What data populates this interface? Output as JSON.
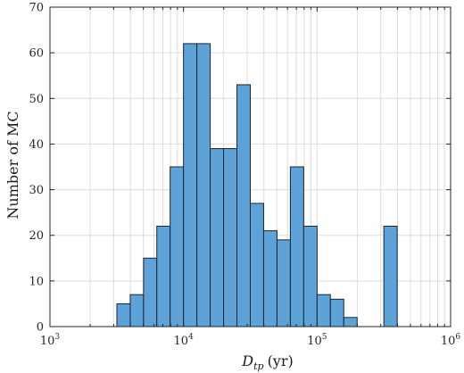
{
  "chart_data": {
    "type": "bar",
    "subtype": "histogram",
    "x_scale": "log",
    "xlim": [
      1000,
      1000000
    ],
    "ylim": [
      0,
      70
    ],
    "grid": true,
    "xlabel": {
      "main": "D",
      "sub": "tp",
      "unit": "(yr)"
    },
    "ylabel": "Number of MC",
    "x_ticks": [
      {
        "base": "10",
        "exp": "3",
        "value": 1000
      },
      {
        "base": "10",
        "exp": "4",
        "value": 10000
      },
      {
        "base": "10",
        "exp": "5",
        "value": 100000
      },
      {
        "base": "10",
        "exp": "6",
        "value": 1000000
      }
    ],
    "y_ticks": [
      0,
      10,
      20,
      30,
      40,
      50,
      60,
      70
    ],
    "bin_edges": [
      3170,
      3990,
      5020,
      6310,
      7940,
      10000,
      12590,
      15850,
      19950,
      25120,
      31620,
      39810,
      50120,
      63100,
      79430,
      100000,
      125890,
      158490,
      199530,
      251190,
      316230,
      398110
    ],
    "values": [
      5,
      7,
      15,
      22,
      35,
      62,
      62,
      39,
      39,
      53,
      27,
      21,
      19,
      35,
      22,
      7,
      6,
      2,
      0,
      0,
      22
    ],
    "bar_color": "#5ea3d8"
  }
}
